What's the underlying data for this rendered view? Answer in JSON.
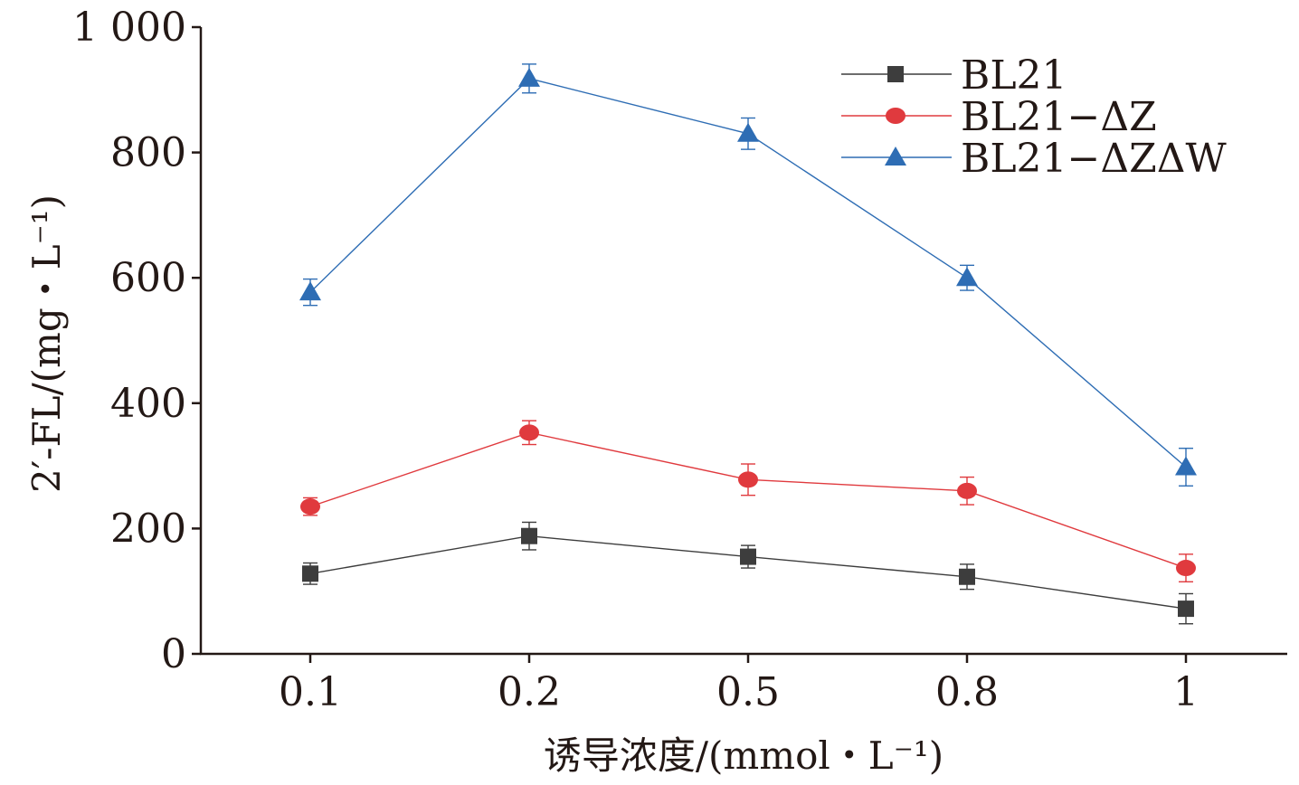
{
  "chart_data": {
    "type": "line",
    "xlabel": "诱导浓度/(mmol・L⁻¹)",
    "ylabel": "2′-FL/(mg・L⁻¹)",
    "categories": [
      "0.1",
      "0.2",
      "0.5",
      "0.8",
      "1"
    ],
    "ylim": [
      0,
      1000
    ],
    "yticks": [
      0,
      200,
      400,
      600,
      800,
      1000
    ],
    "ytick_labels": [
      "0",
      "200",
      "400",
      "600",
      "800",
      "1 000"
    ],
    "grid": false,
    "legend_position": "top-right",
    "series": [
      {
        "name": "BL21",
        "color": "#3d3d3d",
        "marker": "square",
        "values": [
          128,
          188,
          155,
          123,
          72
        ],
        "errors": [
          17,
          22,
          18,
          20,
          24
        ]
      },
      {
        "name": "BL21−ΔZ",
        "color": "#e03a3e",
        "marker": "circle",
        "values": [
          235,
          353,
          278,
          260,
          137
        ],
        "errors": [
          14,
          19,
          25,
          22,
          22
        ]
      },
      {
        "name": "BL21−ΔZΔW",
        "color": "#2e6db4",
        "marker": "triangle",
        "values": [
          577,
          918,
          830,
          600,
          298
        ],
        "errors": [
          21,
          23,
          25,
          20,
          30
        ]
      }
    ]
  }
}
